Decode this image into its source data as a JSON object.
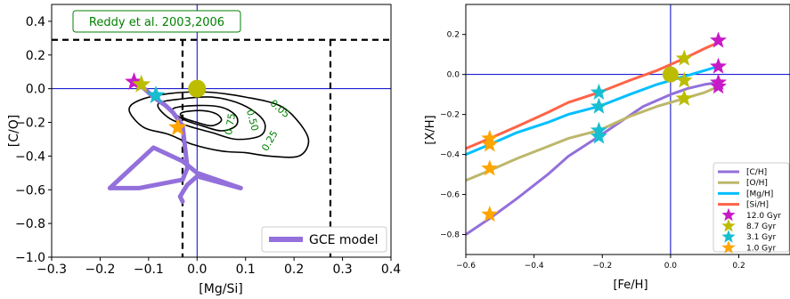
{
  "chart_data": [
    {
      "type": "line",
      "xlabel": "[Mg/Si]",
      "ylabel": "[C/O]",
      "xlim": [
        -0.3,
        0.4
      ],
      "ylim": [
        -1.0,
        0.5
      ],
      "xticks": [
        "−0.3",
        "−0.2",
        "−0.1",
        "0.0",
        "0.1",
        "0.2",
        "0.3",
        "0.4"
      ],
      "yticks": [
        "−1.0",
        "−0.8",
        "−0.6",
        "−0.4",
        "−0.2",
        "0.0",
        "0.2",
        "0.4"
      ],
      "annotation": "Reddy et al. 2003,2006",
      "solar_point": {
        "x": 0.0,
        "y": 0.0,
        "color": "#bcbc00"
      },
      "reference_lines": {
        "vertical": 0.0,
        "horizontal": 0.0,
        "color": "#0000cc"
      },
      "dashed_box": {
        "x": [
          -0.03,
          0.275
        ],
        "y_top": 0.29,
        "color": "#000000"
      },
      "contours": [
        {
          "label": "0.05",
          "points": [
            [
              -0.14,
              -0.13
            ],
            [
              -0.12,
              -0.07
            ],
            [
              -0.06,
              -0.03
            ],
            [
              0.02,
              -0.02
            ],
            [
              0.1,
              -0.05
            ],
            [
              0.17,
              -0.1
            ],
            [
              0.21,
              -0.2
            ],
            [
              0.23,
              -0.31
            ],
            [
              0.21,
              -0.4
            ],
            [
              0.15,
              -0.4
            ],
            [
              0.1,
              -0.38
            ],
            [
              0.05,
              -0.37
            ],
            [
              -0.01,
              -0.33
            ],
            [
              -0.06,
              -0.27
            ],
            [
              -0.11,
              -0.23
            ],
            [
              -0.14,
              -0.13
            ]
          ]
        },
        {
          "label": "0.25",
          "points": [
            [
              -0.08,
              -0.09
            ],
            [
              -0.03,
              -0.06
            ],
            [
              0.03,
              -0.05
            ],
            [
              0.08,
              -0.08
            ],
            [
              0.12,
              -0.14
            ],
            [
              0.14,
              -0.21
            ],
            [
              0.13,
              -0.28
            ],
            [
              0.08,
              -0.3
            ],
            [
              0.03,
              -0.26
            ],
            [
              -0.02,
              -0.22
            ],
            [
              -0.06,
              -0.17
            ],
            [
              -0.08,
              -0.09
            ]
          ]
        },
        {
          "label": "0.50",
          "points": [
            [
              -0.05,
              -0.12
            ],
            [
              0.0,
              -0.1
            ],
            [
              0.05,
              -0.11
            ],
            [
              0.08,
              -0.16
            ],
            [
              0.08,
              -0.22
            ],
            [
              0.05,
              -0.25
            ],
            [
              0.01,
              -0.22
            ],
            [
              -0.03,
              -0.18
            ],
            [
              -0.05,
              -0.12
            ]
          ]
        },
        {
          "label": "0.75",
          "points": [
            [
              -0.03,
              -0.14
            ],
            [
              0.01,
              -0.13
            ],
            [
              0.04,
              -0.15
            ],
            [
              0.05,
              -0.19
            ],
            [
              0.03,
              -0.22
            ],
            [
              0.0,
              -0.2
            ],
            [
              -0.03,
              -0.17
            ],
            [
              -0.03,
              -0.14
            ]
          ]
        }
      ],
      "series": [
        {
          "name": "GCE model",
          "color": "#9370db",
          "x": [
            -0.03,
            -0.035,
            -0.02,
            0.0,
            0.09,
            0.0,
            -0.03,
            -0.09,
            -0.18,
            -0.12,
            -0.03,
            -0.02,
            -0.03,
            -0.05,
            -0.065,
            -0.09,
            -0.12
          ],
          "y": [
            -0.67,
            -0.64,
            -0.57,
            -0.52,
            -0.59,
            -0.5,
            -0.43,
            -0.35,
            -0.59,
            -0.59,
            -0.54,
            -0.47,
            -0.22,
            -0.14,
            -0.1,
            -0.05,
            0.03
          ]
        }
      ],
      "markers": [
        {
          "label": "12.0 Gyr",
          "x": -0.13,
          "y": 0.04,
          "color": "#c71ac7"
        },
        {
          "label": "8.7 Gyr",
          "x": -0.115,
          "y": 0.025,
          "color": "#bcbc00"
        },
        {
          "label": "3.1 Gyr",
          "x": -0.085,
          "y": -0.04,
          "color": "#17becf"
        },
        {
          "label": "1.0 Gyr",
          "x": -0.04,
          "y": -0.23,
          "color": "#ffa500"
        }
      ],
      "legend": {
        "position": "bottom-right",
        "entries": [
          "GCE model"
        ]
      }
    },
    {
      "type": "line",
      "xlabel": "[Fe/H]",
      "ylabel": "[X/H]",
      "xlim": [
        -0.6,
        0.35
      ],
      "ylim": [
        -0.9,
        0.35
      ],
      "xticks": [
        "−0.6",
        "−0.4",
        "−0.2",
        "0.0",
        "0.2"
      ],
      "yticks": [
        "−0.8",
        "−0.6",
        "−0.4",
        "−0.2",
        "0.0",
        "0.2"
      ],
      "solar_point": {
        "x": 0.0,
        "y": 0.0,
        "color": "#bcbc00"
      },
      "reference_lines": {
        "vertical": 0.0,
        "horizontal": 0.0,
        "color": "#0000cc"
      },
      "series": [
        {
          "name": "[C/H]",
          "color": "#9370db",
          "x": [
            -0.6,
            -0.53,
            -0.45,
            -0.36,
            -0.3,
            -0.21,
            -0.15,
            -0.08,
            0.0,
            0.05,
            0.1,
            0.14
          ],
          "y": [
            -0.8,
            -0.72,
            -0.62,
            -0.5,
            -0.41,
            -0.31,
            -0.24,
            -0.16,
            -0.1,
            -0.07,
            -0.05,
            -0.04
          ]
        },
        {
          "name": "[O/H]",
          "color": "#bdb76b",
          "x": [
            -0.6,
            -0.53,
            -0.45,
            -0.36,
            -0.3,
            -0.21,
            -0.12,
            -0.04,
            0.04,
            0.1,
            0.14
          ],
          "y": [
            -0.53,
            -0.48,
            -0.42,
            -0.36,
            -0.32,
            -0.28,
            -0.21,
            -0.16,
            -0.12,
            -0.09,
            -0.06
          ]
        },
        {
          "name": "[Mg/H]",
          "color": "#00bfff",
          "x": [
            -0.6,
            -0.53,
            -0.45,
            -0.36,
            -0.3,
            -0.21,
            -0.12,
            -0.04,
            0.04,
            0.1,
            0.14
          ],
          "y": [
            -0.4,
            -0.35,
            -0.29,
            -0.24,
            -0.2,
            -0.16,
            -0.1,
            -0.05,
            -0.01,
            0.02,
            0.04
          ]
        },
        {
          "name": "[Si/H]",
          "color": "#ff6347",
          "x": [
            -0.6,
            -0.53,
            -0.45,
            -0.36,
            -0.3,
            -0.21,
            -0.12,
            -0.04,
            0.04,
            0.1,
            0.14
          ],
          "y": [
            -0.37,
            -0.32,
            -0.26,
            -0.19,
            -0.14,
            -0.09,
            -0.03,
            0.02,
            0.08,
            0.13,
            0.16
          ]
        }
      ],
      "markers": [
        {
          "label": "12.0 Gyr",
          "color": "#c71ac7",
          "points": [
            [
              0.14,
              0.17
            ],
            [
              0.14,
              0.04
            ],
            [
              0.14,
              -0.04
            ],
            [
              0.14,
              -0.06
            ]
          ]
        },
        {
          "label": "8.7 Gyr",
          "color": "#bcbc00",
          "points": [
            [
              0.04,
              0.08
            ],
            [
              0.04,
              -0.03
            ],
            [
              0.04,
              -0.12
            ],
            [
              0.04,
              -0.12
            ]
          ]
        },
        {
          "label": "3.1 Gyr",
          "color": "#17becf",
          "points": [
            [
              -0.21,
              -0.09
            ],
            [
              -0.21,
              -0.16
            ],
            [
              -0.21,
              -0.28
            ],
            [
              -0.21,
              -0.31
            ]
          ]
        },
        {
          "label": "1.0 Gyr",
          "color": "#ffa500",
          "points": [
            [
              -0.53,
              -0.32
            ],
            [
              -0.53,
              -0.35
            ],
            [
              -0.53,
              -0.47
            ],
            [
              -0.53,
              -0.7
            ]
          ]
        }
      ],
      "legend": {
        "position": "bottom-right",
        "entries": [
          "[C/H]",
          "[O/H]",
          "[Mg/H]",
          "[Si/H]",
          "12.0 Gyr",
          "8.7 Gyr",
          "3.1 Gyr",
          "1.0 Gyr"
        ]
      }
    }
  ]
}
